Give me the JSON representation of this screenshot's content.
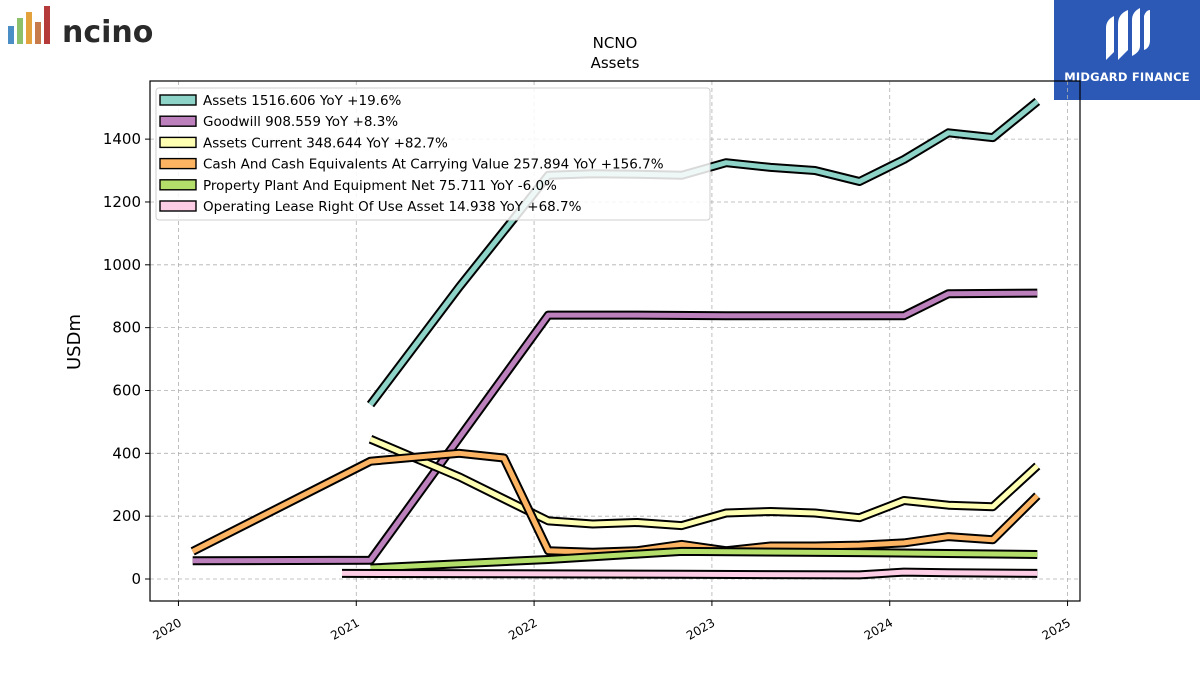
{
  "branding": {
    "left_logo_text": "ncino",
    "right_logo_text": "MIDGARD FINANCE",
    "right_logo_bg": "#2b59b5"
  },
  "chart_data": {
    "type": "line",
    "title": "NCNO",
    "subtitle": "Assets",
    "ylabel": "USDm",
    "xlabel": "",
    "xlim": [
      2019.84,
      2025.07
    ],
    "ylim": [
      -70,
      1585
    ],
    "x_ticks": [
      2020,
      2021,
      2022,
      2023,
      2024,
      2025
    ],
    "x_tick_labels": [
      "2020",
      "2021",
      "2022",
      "2023",
      "2024",
      "2025"
    ],
    "y_ticks": [
      0,
      200,
      400,
      600,
      800,
      1000,
      1200,
      1400
    ],
    "y_tick_labels": [
      "0",
      "200",
      "400",
      "600",
      "800",
      "1000",
      "1200",
      "1400"
    ],
    "grid": true,
    "legend_position": "top-left",
    "series": [
      {
        "name": "Assets",
        "legend": "Assets  1516.606 YoY +19.6%",
        "color": "#8dd3c7",
        "points": [
          [
            2021.08,
            555
          ],
          [
            2021.58,
            930
          ],
          [
            2022.08,
            1285
          ],
          [
            2022.33,
            1290
          ],
          [
            2022.58,
            1288
          ],
          [
            2022.83,
            1285
          ],
          [
            2023.08,
            1325
          ],
          [
            2023.33,
            1310
          ],
          [
            2023.58,
            1300
          ],
          [
            2023.83,
            1265
          ],
          [
            2024.08,
            1335
          ],
          [
            2024.33,
            1420
          ],
          [
            2024.58,
            1405
          ],
          [
            2024.83,
            1520
          ]
        ]
      },
      {
        "name": "Goodwill",
        "legend": "Goodwill  908.559 YoY +8.3%",
        "color": "#bc80bd",
        "points": [
          [
            2020.08,
            58
          ],
          [
            2021.08,
            60
          ],
          [
            2022.08,
            840
          ],
          [
            2022.58,
            840
          ],
          [
            2023.08,
            838
          ],
          [
            2023.58,
            838
          ],
          [
            2024.08,
            838
          ],
          [
            2024.33,
            908
          ],
          [
            2024.83,
            910
          ]
        ]
      },
      {
        "name": "Assets Current",
        "legend": "Assets Current  348.644 YoY +82.7%",
        "color": "#ffffb3",
        "points": [
          [
            2021.08,
            445
          ],
          [
            2021.58,
            325
          ],
          [
            2022.08,
            185
          ],
          [
            2022.33,
            175
          ],
          [
            2022.58,
            180
          ],
          [
            2022.83,
            170
          ],
          [
            2023.08,
            210
          ],
          [
            2023.33,
            215
          ],
          [
            2023.58,
            210
          ],
          [
            2023.83,
            195
          ],
          [
            2024.08,
            250
          ],
          [
            2024.33,
            235
          ],
          [
            2024.58,
            230
          ],
          [
            2024.83,
            360
          ]
        ]
      },
      {
        "name": "Cash And Cash Equivalents At Carrying Value",
        "legend": "Cash And Cash Equivalents At Carrying Value  257.894 YoY +156.7%",
        "color": "#fdb462",
        "points": [
          [
            2020.08,
            88
          ],
          [
            2021.08,
            375
          ],
          [
            2021.58,
            400
          ],
          [
            2021.83,
            385
          ],
          [
            2022.08,
            90
          ],
          [
            2022.33,
            85
          ],
          [
            2022.58,
            90
          ],
          [
            2022.83,
            110
          ],
          [
            2023.08,
            90
          ],
          [
            2023.33,
            105
          ],
          [
            2023.58,
            105
          ],
          [
            2023.83,
            108
          ],
          [
            2024.08,
            115
          ],
          [
            2024.33,
            135
          ],
          [
            2024.58,
            125
          ],
          [
            2024.83,
            265
          ]
        ]
      },
      {
        "name": "Property Plant And Equipment Net",
        "legend": "Property Plant And Equipment Net  75.711 YoY -6.0%",
        "color": "#b3de69",
        "points": [
          [
            2021.08,
            35
          ],
          [
            2022.08,
            62
          ],
          [
            2022.83,
            88
          ],
          [
            2023.83,
            84
          ],
          [
            2024.83,
            78
          ]
        ]
      },
      {
        "name": "Operating Lease Right Of Use Asset",
        "legend": "Operating Lease Right Of Use Asset  14.938 YoY +68.7%",
        "color": "#fccde5",
        "points": [
          [
            2020.92,
            18
          ],
          [
            2021.83,
            17
          ],
          [
            2022.83,
            15
          ],
          [
            2023.83,
            13
          ],
          [
            2024.08,
            22
          ],
          [
            2024.33,
            20
          ],
          [
            2024.83,
            18
          ]
        ]
      }
    ]
  }
}
